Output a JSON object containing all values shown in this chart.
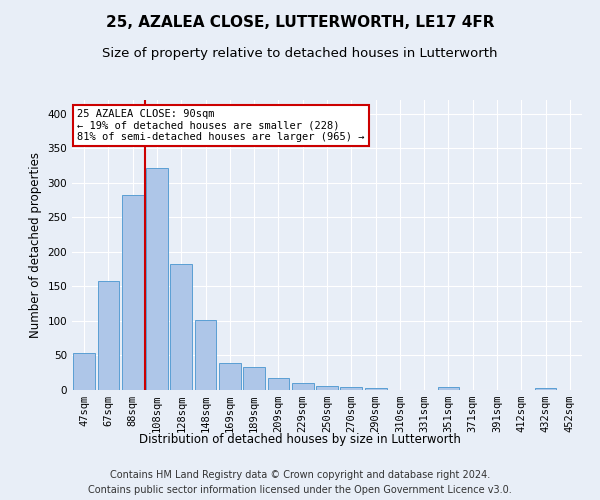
{
  "title": "25, AZALEA CLOSE, LUTTERWORTH, LE17 4FR",
  "subtitle": "Size of property relative to detached houses in Lutterworth",
  "xlabel": "Distribution of detached houses by size in Lutterworth",
  "ylabel": "Number of detached properties",
  "categories": [
    "47sqm",
    "67sqm",
    "88sqm",
    "108sqm",
    "128sqm",
    "148sqm",
    "169sqm",
    "189sqm",
    "209sqm",
    "229sqm",
    "250sqm",
    "270sqm",
    "290sqm",
    "310sqm",
    "331sqm",
    "351sqm",
    "371sqm",
    "391sqm",
    "412sqm",
    "432sqm",
    "452sqm"
  ],
  "values": [
    53,
    158,
    283,
    322,
    182,
    101,
    39,
    33,
    18,
    10,
    6,
    4,
    3,
    0,
    0,
    4,
    0,
    0,
    0,
    3,
    0
  ],
  "bar_color": "#aec6e8",
  "bar_edge_color": "#5a9fd4",
  "vline_index": 2,
  "vline_color": "#cc0000",
  "annotation_text": "25 AZALEA CLOSE: 90sqm\n← 19% of detached houses are smaller (228)\n81% of semi-detached houses are larger (965) →",
  "annotation_box_color": "#ffffff",
  "annotation_box_edge_color": "#cc0000",
  "ylim": [
    0,
    420
  ],
  "yticks": [
    0,
    50,
    100,
    150,
    200,
    250,
    300,
    350,
    400
  ],
  "footer1": "Contains HM Land Registry data © Crown copyright and database right 2024.",
  "footer2": "Contains public sector information licensed under the Open Government Licence v3.0.",
  "background_color": "#e8eef7",
  "grid_color": "#ffffff",
  "title_fontsize": 11,
  "subtitle_fontsize": 9.5,
  "tick_fontsize": 7.5,
  "ylabel_fontsize": 8.5,
  "xlabel_fontsize": 8.5,
  "footer_fontsize": 7
}
